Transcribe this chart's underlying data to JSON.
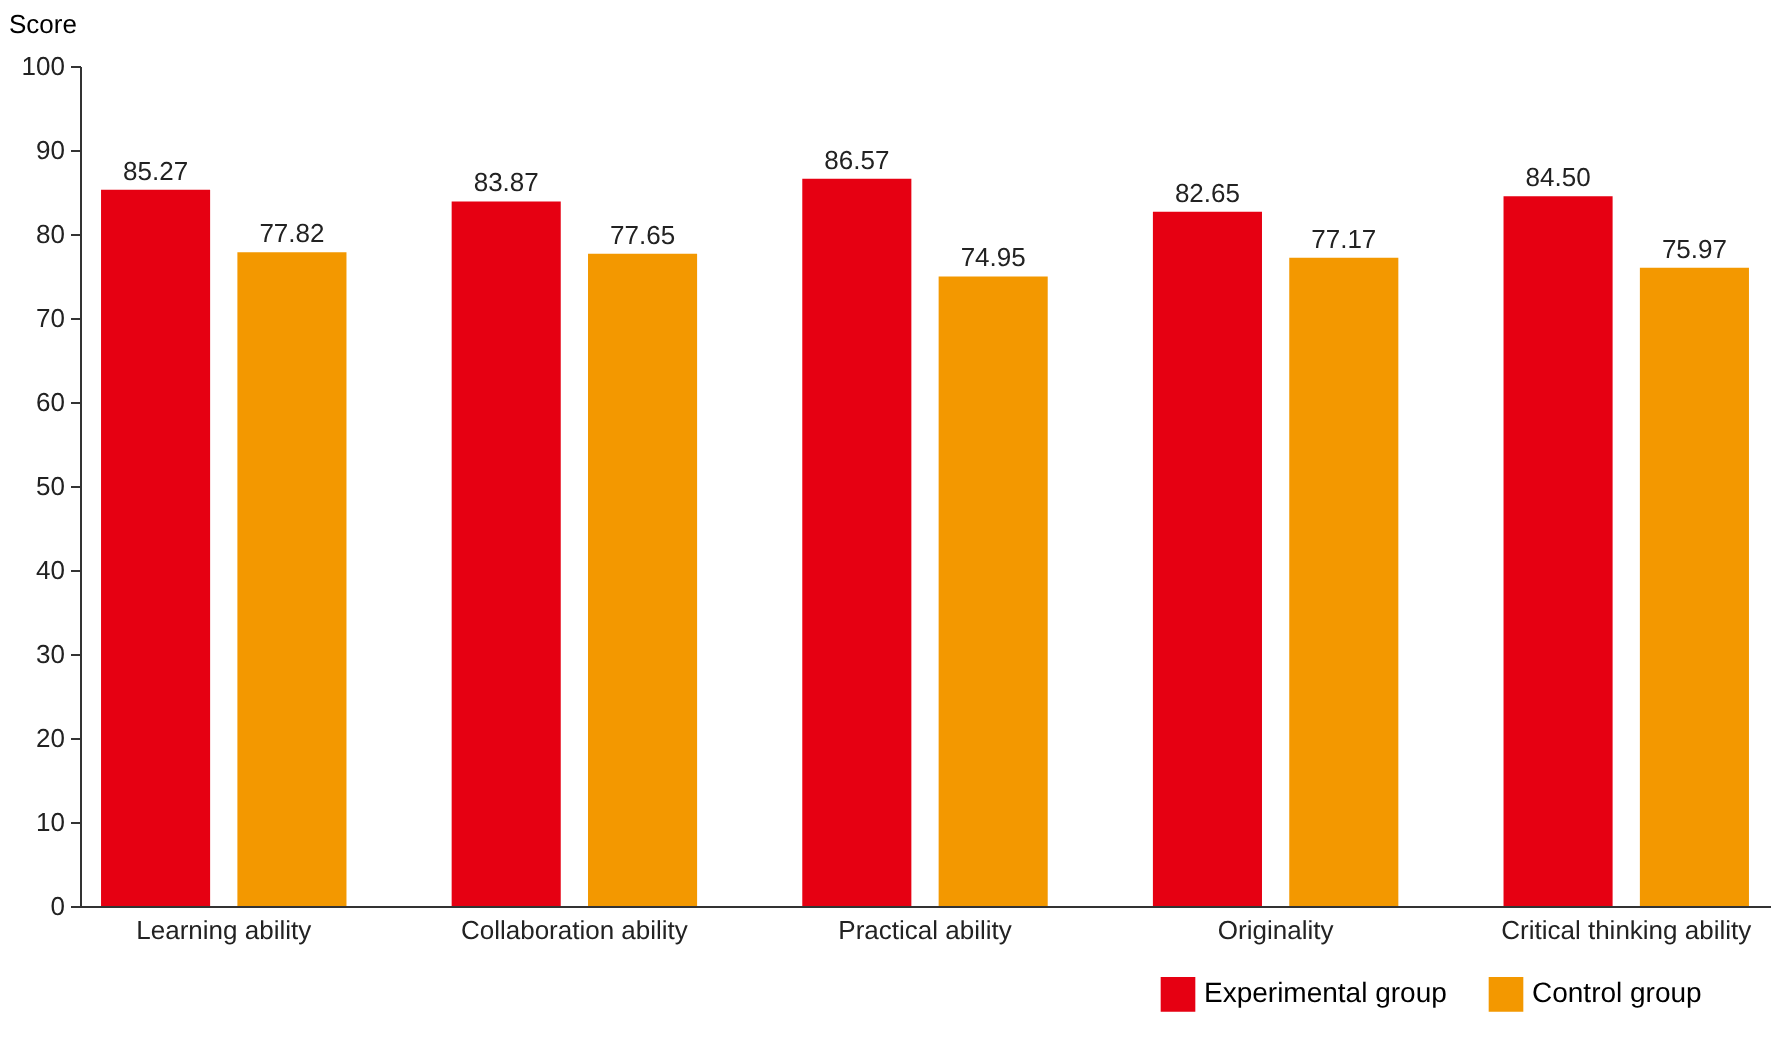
{
  "chart_data": {
    "type": "bar",
    "ylabel": "Score",
    "categories": [
      "Learning ability",
      "Collaboration ability",
      "Practical ability",
      "Originality",
      "Critical thinking ability"
    ],
    "series": [
      {
        "name": "Experimental group",
        "color": "#e60012",
        "values": [
          85.27,
          83.87,
          86.57,
          82.65,
          84.5
        ],
        "value_labels": [
          "85.27",
          "83.87",
          "86.57",
          "82.65",
          "84.50"
        ]
      },
      {
        "name": "Control group",
        "color": "#f39800",
        "values": [
          77.82,
          77.65,
          74.95,
          77.17,
          75.97
        ],
        "value_labels": [
          "77.82",
          "77.65",
          "74.95",
          "77.17",
          "75.97"
        ]
      }
    ],
    "ylim": [
      0,
      100
    ],
    "yticks": [
      0,
      10,
      20,
      30,
      40,
      50,
      60,
      70,
      80,
      90,
      100
    ],
    "legend": "bottom right"
  }
}
